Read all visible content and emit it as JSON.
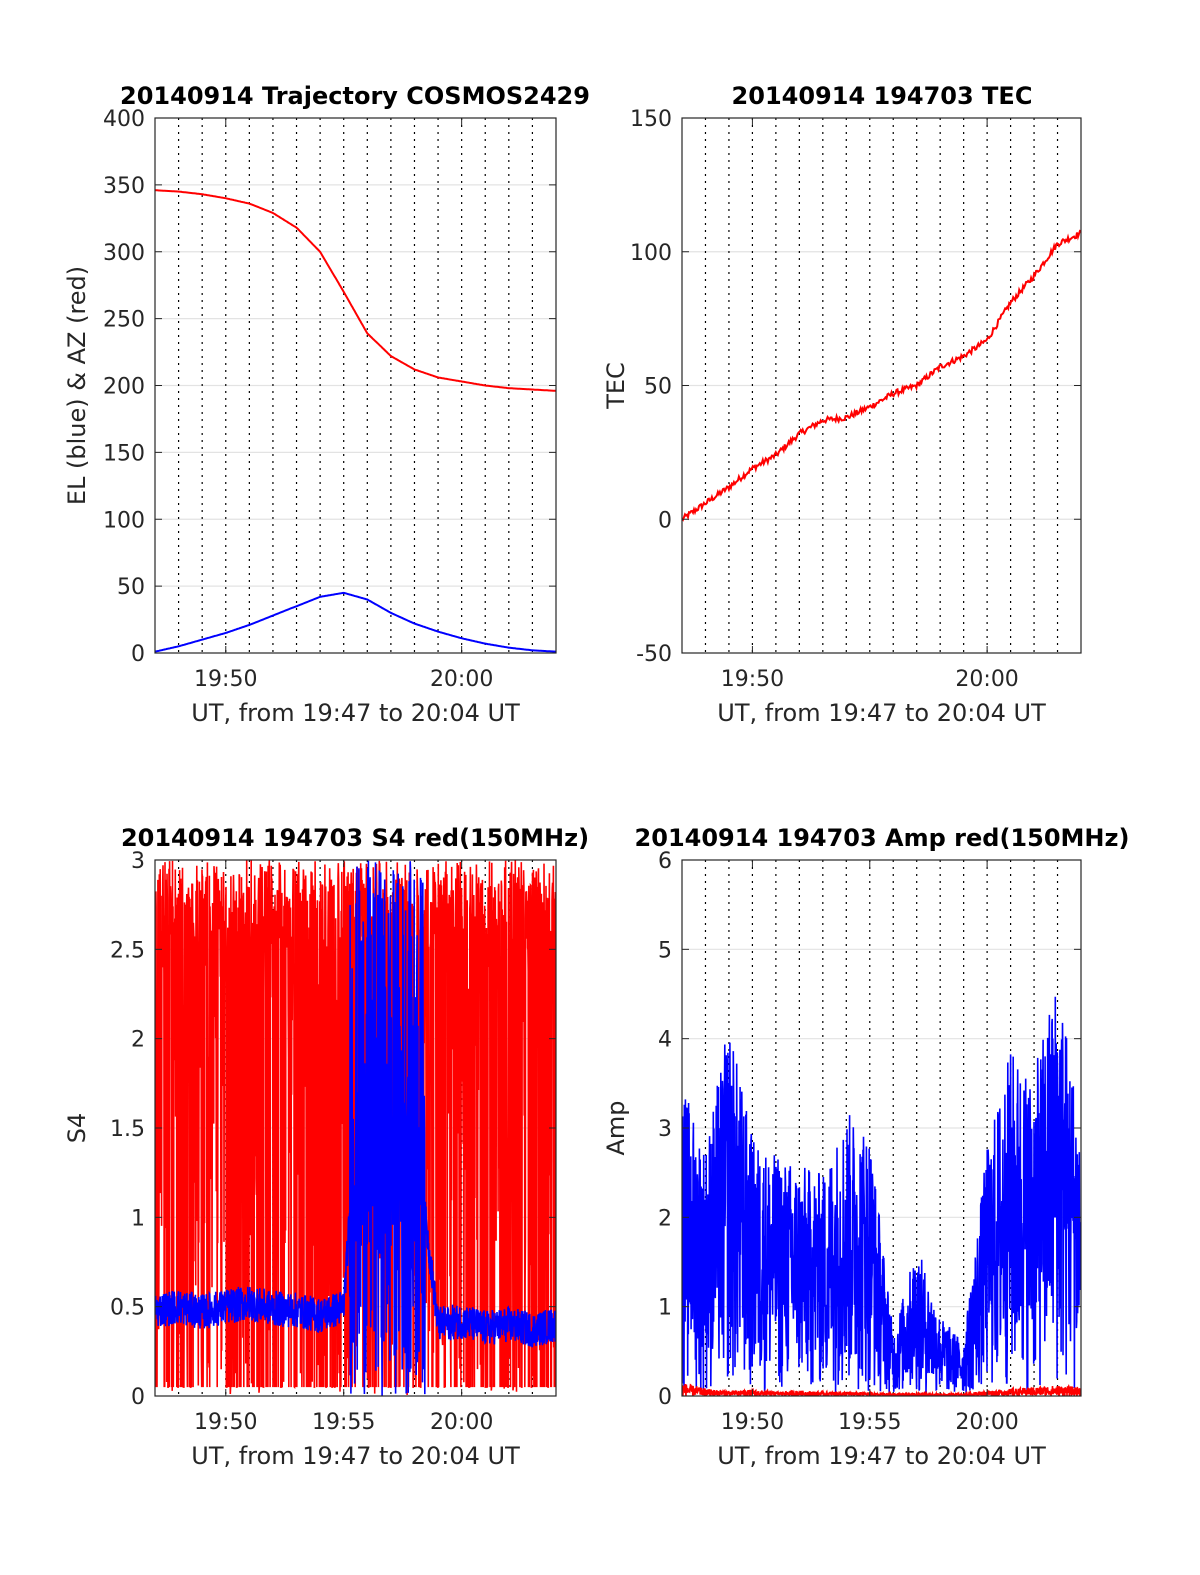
{
  "figure": {
    "background": "#ffffff",
    "series_colors": {
      "red": "#ff0000",
      "blue": "#0000ff"
    }
  },
  "chart_data": [
    {
      "id": "trajectory",
      "type": "line",
      "title": "20140914 Trajectory COSMOS2429",
      "xlabel": "UT, from 19:47 to 20:04 UT",
      "ylabel": "EL (blue) & AZ (red)",
      "xlim": [
        "19:47",
        "20:04"
      ],
      "ylim": [
        0,
        400
      ],
      "yticks": [
        0,
        50,
        100,
        150,
        200,
        250,
        300,
        350,
        400
      ],
      "xticks": [
        "19:50",
        "20:00"
      ],
      "grid": "vertical dotted lines every 1 minute; light horizontal lines at y ticks",
      "series": [
        {
          "color": "#ff0000",
          "x": [
            "19:47",
            "19:48",
            "19:49",
            "19:50",
            "19:51",
            "19:52",
            "19:53",
            "19:54",
            "19:55",
            "19:56",
            "19:57",
            "19:58",
            "19:59",
            "20:00",
            "20:01",
            "20:02",
            "20:03",
            "20:04"
          ],
          "values": [
            346,
            345,
            343,
            340,
            336,
            329,
            318,
            300,
            270,
            239,
            222,
            212,
            206,
            203,
            200,
            198,
            197,
            196
          ]
        },
        {
          "color": "#0000ff",
          "x": [
            "19:47",
            "19:48",
            "19:49",
            "19:50",
            "19:51",
            "19:52",
            "19:53",
            "19:54",
            "19:55",
            "19:56",
            "19:57",
            "19:58",
            "19:59",
            "20:00",
            "20:01",
            "20:02",
            "20:03",
            "20:04"
          ],
          "values": [
            1,
            5,
            10,
            15,
            21,
            28,
            35,
            42,
            45,
            40,
            30,
            22,
            16,
            11,
            7,
            4,
            2,
            1
          ]
        }
      ]
    },
    {
      "id": "tec",
      "type": "line",
      "title": "20140914 194703 TEC",
      "xlabel": "UT, from 19:47 to 20:04 UT",
      "ylabel": "TEC",
      "xlim": [
        "19:47",
        "20:04"
      ],
      "ylim": [
        -50,
        150
      ],
      "yticks": [
        -50,
        0,
        50,
        100,
        150
      ],
      "xticks": [
        "19:50",
        "20:00"
      ],
      "grid": "vertical dotted lines every 1 minute; light horizontal lines at y ticks",
      "series": [
        {
          "color": "#ff0000",
          "x": [
            "19:47",
            "19:48",
            "19:49",
            "19:50",
            "19:51",
            "19:52",
            "19:53",
            "19:54",
            "19:55",
            "19:56",
            "19:57",
            "19:58",
            "19:59",
            "20:00",
            "20:01",
            "20:02",
            "20:03",
            "20:04"
          ],
          "values": [
            0,
            6,
            12,
            19,
            24,
            32,
            37,
            38,
            42,
            47,
            50,
            57,
            61,
            67,
            81,
            91,
            103,
            107
          ]
        }
      ]
    },
    {
      "id": "s4",
      "type": "line",
      "title": "20140914 194703 S4 red(150MHz)",
      "xlabel": "UT, from 19:47 to 20:04 UT",
      "ylabel": "S4",
      "xlim": [
        "19:47",
        "20:04"
      ],
      "ylim": [
        0,
        3
      ],
      "yticks": [
        0,
        0.5,
        1,
        1.5,
        2,
        2.5,
        3
      ],
      "xticks": [
        "19:50",
        "19:55",
        "20:00"
      ],
      "grid": "vertical dotted lines every 1 minute; light horizontal lines at y ticks",
      "series": [
        {
          "color": "#ff0000",
          "x": [
            "19:47",
            "19:48",
            "19:49",
            "19:50",
            "19:51",
            "19:52",
            "19:53",
            "19:54",
            "19:55",
            "19:56",
            "19:57",
            "19:58",
            "19:59",
            "20:00",
            "20:01",
            "20:02",
            "20:03",
            "20:04"
          ],
          "values": [
            2.6,
            0.2,
            2.8,
            0.3,
            2.9,
            0.1,
            2.9,
            0.4,
            2.8,
            0.2,
            2.9,
            0.1,
            2.9,
            0.3,
            2.8,
            0.2,
            2.9,
            2.4
          ]
        },
        {
          "color": "#0000ff",
          "x": [
            "19:47",
            "19:48",
            "19:49",
            "19:50",
            "19:51",
            "19:52",
            "19:53",
            "19:54",
            "19:55",
            "19:56",
            "19:57",
            "19:58",
            "19:59",
            "20:00",
            "20:01",
            "20:02",
            "20:03",
            "20:04"
          ],
          "values": [
            0.48,
            0.5,
            0.47,
            0.5,
            0.52,
            0.49,
            0.48,
            0.45,
            0.5,
            2.5,
            2.8,
            1.5,
            0.4,
            0.42,
            0.38,
            0.4,
            0.37,
            0.4
          ]
        }
      ]
    },
    {
      "id": "amp",
      "type": "line",
      "title": "20140914 194703 Amp red(150MHz)",
      "xlabel": "UT, from 19:47 to 20:04 UT",
      "ylabel": "Amp",
      "xlim": [
        "19:47",
        "20:04"
      ],
      "ylim": [
        0,
        6
      ],
      "yticks": [
        0,
        1,
        2,
        3,
        4,
        5,
        6
      ],
      "xticks": [
        "19:50",
        "19:55",
        "20:00"
      ],
      "grid": "vertical dotted lines every 1 minute; light horizontal lines at y ticks",
      "series": [
        {
          "color": "#0000ff",
          "x": [
            "19:47",
            "19:48",
            "19:49",
            "19:50",
            "19:51",
            "19:52",
            "19:53",
            "19:54",
            "19:55",
            "19:56",
            "19:57",
            "19:58",
            "19:59",
            "20:00",
            "20:01",
            "20:02",
            "20:03",
            "20:04"
          ],
          "values": [
            3.5,
            2.8,
            4.2,
            2.9,
            2.7,
            2.6,
            2.5,
            3.2,
            3.0,
            0.7,
            1.7,
            0.9,
            0.6,
            2.8,
            3.9,
            3.6,
            4.8,
            3.1
          ]
        },
        {
          "color": "#ff0000",
          "x": [
            "19:47",
            "19:48",
            "19:49",
            "19:50",
            "19:51",
            "19:52",
            "19:53",
            "19:54",
            "19:55",
            "19:56",
            "19:57",
            "19:58",
            "19:59",
            "20:00",
            "20:01",
            "20:02",
            "20:03",
            "20:04"
          ],
          "values": [
            0.15,
            0.08,
            0.06,
            0.07,
            0.05,
            0.06,
            0.05,
            0.05,
            0.04,
            0.03,
            0.03,
            0.03,
            0.03,
            0.06,
            0.08,
            0.1,
            0.12,
            0.1
          ]
        }
      ]
    }
  ]
}
